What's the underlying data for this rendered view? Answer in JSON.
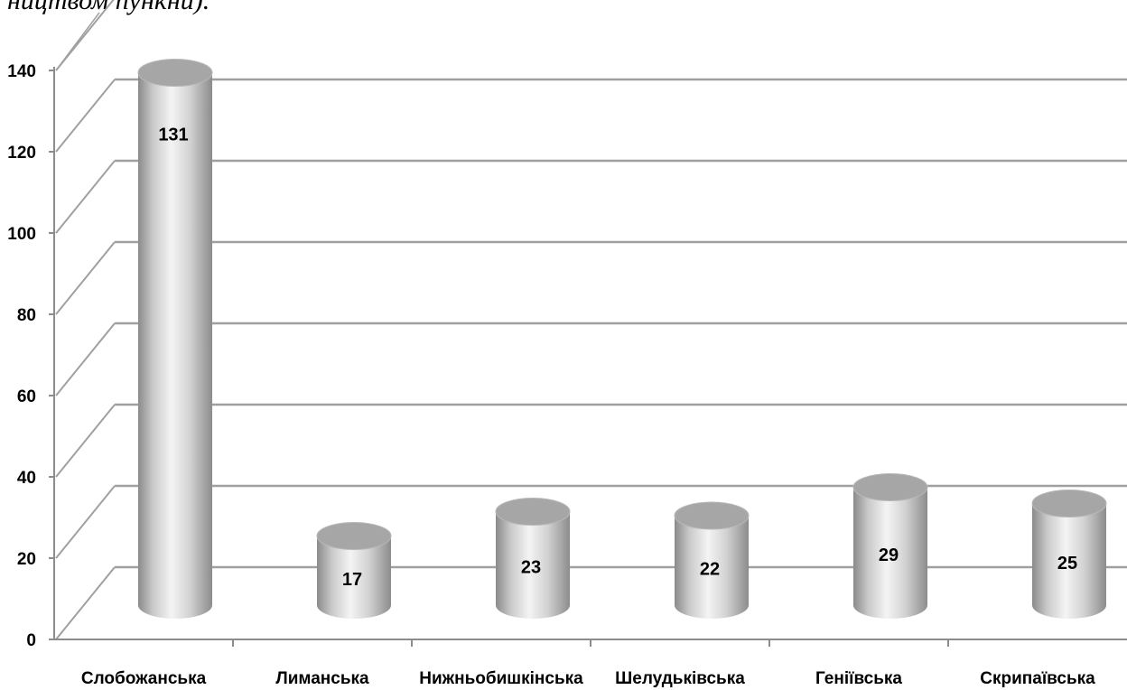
{
  "page": {
    "heading_fragment": "ництвом пункни)."
  },
  "chart_data": {
    "type": "bar",
    "title": "",
    "xlabel": "",
    "ylabel": "",
    "categories": [
      "Слобожанська",
      "Лиманська",
      "Нижньобишкінська",
      "Шелудьківська",
      "Геніївська",
      "Скрипаївська"
    ],
    "values": [
      131,
      17,
      23,
      22,
      29,
      25
    ],
    "data_labels": [
      "131",
      "17",
      "23",
      "22",
      "29",
      "25"
    ],
    "ylim": [
      0,
      140
    ],
    "yticks": [
      0,
      20,
      40,
      60,
      80,
      100,
      120,
      140
    ],
    "ytick_labels": [
      "0",
      "20",
      "40",
      "60",
      "80",
      "100",
      "120",
      "140"
    ],
    "grid": true,
    "legend": "none",
    "style": "3d-cylinder",
    "colors": {
      "cylinder_dark": "#8a8a8a",
      "cylinder_light": "#f4f4f4",
      "cylinder_top": "#a6a6a6",
      "gridline": "#a0a0a0",
      "axis": "#8c8c8c"
    }
  }
}
